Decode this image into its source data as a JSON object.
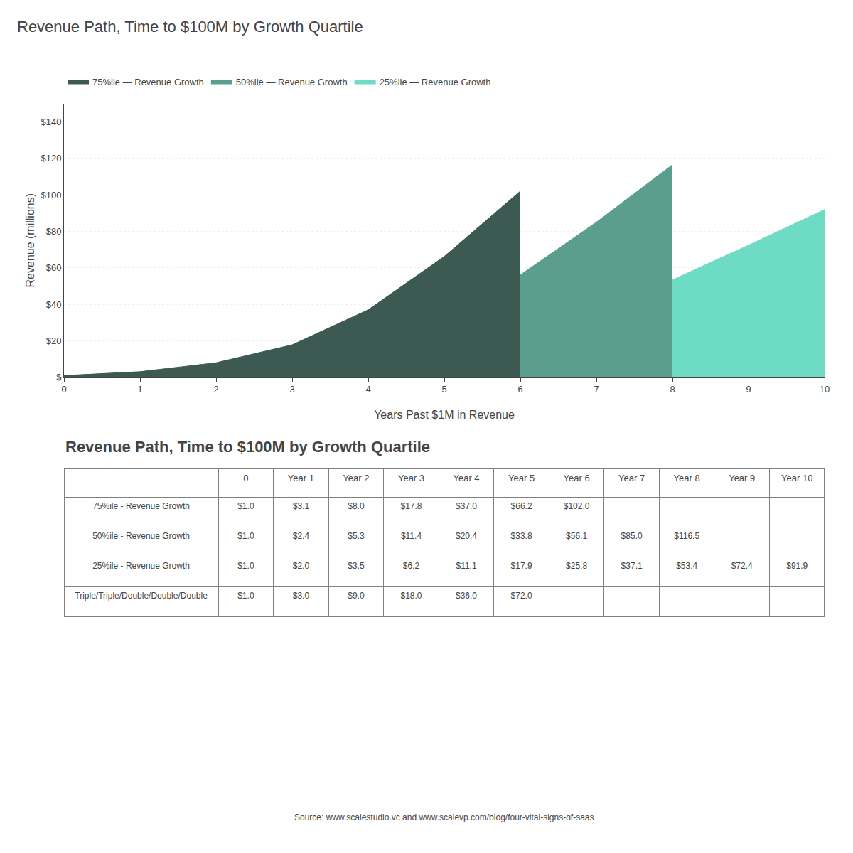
{
  "chart_data": [
    {
      "type": "area",
      "title": "Revenue Path, Time to $100M by Growth Quartile",
      "xlabel": "Years Past $1M in Revenue",
      "ylabel": "Revenue (millions)",
      "series": [
        {
          "name": "75%ile — Revenue Growth",
          "color": "#3d5a52",
          "x": [
            0,
            1,
            2,
            3,
            4,
            5,
            6
          ],
          "values": [
            1.0,
            3.1,
            8.0,
            17.8,
            37.0,
            66.2,
            102.0
          ]
        },
        {
          "name": "50%ile — Revenue Growth",
          "color": "#5b9e8e",
          "x": [
            0,
            1,
            2,
            3,
            4,
            5,
            6,
            7,
            8
          ],
          "values": [
            1.0,
            2.4,
            5.3,
            11.4,
            20.4,
            33.8,
            56.1,
            85.0,
            116.5
          ]
        },
        {
          "name": "25%ile — Revenue Growth",
          "color": "#6edcc4",
          "x": [
            0,
            1,
            2,
            3,
            4,
            5,
            6,
            7,
            8,
            9,
            10
          ],
          "values": [
            1.0,
            2.0,
            3.5,
            6.2,
            11.1,
            17.9,
            25.8,
            37.1,
            53.4,
            72.4,
            91.9
          ]
        }
      ],
      "xlim": [
        0,
        10
      ],
      "xticks": [
        0,
        1,
        2,
        3,
        4,
        5,
        6,
        7,
        8,
        9,
        10
      ],
      "ylim": [
        0,
        150
      ],
      "yticks": [
        {
          "value": 0,
          "label": "$"
        },
        {
          "value": 20,
          "label": "$20"
        },
        {
          "value": 40,
          "label": "$40"
        },
        {
          "value": 60,
          "label": "$60"
        },
        {
          "value": 80,
          "label": "$80"
        },
        {
          "value": 100,
          "label": "$100"
        },
        {
          "value": 120,
          "label": "$120"
        },
        {
          "value": 140,
          "label": "$140"
        }
      ],
      "grid": "y",
      "legend": "top left"
    },
    {
      "type": "table",
      "title": "Revenue Path, Time to $100M by Growth Quartile",
      "columns": [
        "0",
        "Year 1",
        "Year 2",
        "Year 3",
        "Year 4",
        "Year 5",
        "Year 6",
        "Year 7",
        "Year 8",
        "Year 9",
        "Year 10"
      ],
      "rows": [
        "75%ile - Revenue Growth",
        "50%ile - Revenue Growth",
        "25%ile - Revenue Growth",
        "Triple/Triple/Double/Double/Double"
      ],
      "cells": [
        [
          "$1.0",
          "$3.1",
          "$8.0",
          "$17.8",
          "$37.0",
          "$66.2",
          "$102.0",
          null,
          null,
          null,
          null
        ],
        [
          "$1.0",
          "$2.4",
          "$5.3",
          "$11.4",
          "$20.4",
          "$33.8",
          "$56.1",
          "$85.0",
          "$116.5",
          null,
          null
        ],
        [
          "$1.0",
          "$2.0",
          "$3.5",
          "$6.2",
          "$11.1",
          "$17.9",
          "$25.8",
          "$37.1",
          "$53.4",
          "$72.4",
          "$91.9"
        ],
        [
          "$1.0",
          "$3.0",
          "$9.0",
          "$18.0",
          "$36.0",
          "$72.0",
          null,
          null,
          null,
          null,
          null
        ]
      ],
      "annotations": [
        "Source: www.scalestudio.vc and www.scalevp.com/blog/four-vital-signs-of-saas"
      ]
    }
  ]
}
